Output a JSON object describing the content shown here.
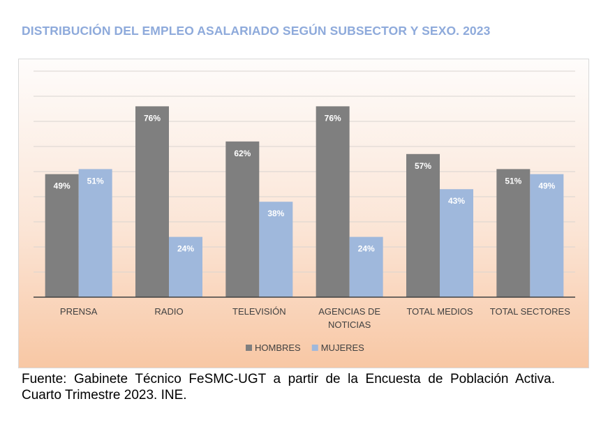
{
  "page": {
    "title": "DISTRIBUCIÓN DEL EMPLEO ASALARIADO SEGÚN SUBSECTOR Y SEXO. 2023",
    "source": "Fuente: Gabinete Técnico FeSMC-UGT a partir de la Encuesta de Población Activa. Cuarto Trimestre 2023. INE."
  },
  "chart_data": {
    "type": "bar",
    "categories": [
      [
        "PRENSA"
      ],
      [
        "RADIO"
      ],
      [
        "TELEVISIÓN"
      ],
      [
        "AGENCIAS DE",
        "NOTICIAS"
      ],
      [
        "TOTAL MEDIOS"
      ],
      [
        "TOTAL SECTORES"
      ]
    ],
    "series": [
      {
        "name": "HOMBRES",
        "values": [
          49,
          76,
          62,
          76,
          57,
          51
        ],
        "labels": [
          "49%",
          "76%",
          "62%",
          "76%",
          "57%",
          "51%"
        ],
        "color": "#7f7f7f"
      },
      {
        "name": "MUJERES",
        "values": [
          51,
          24,
          38,
          24,
          43,
          49
        ],
        "labels": [
          "51%",
          "24%",
          "38%",
          "24%",
          "43%",
          "49%"
        ],
        "color": "#9fb8dc"
      }
    ],
    "ylim": [
      0,
      90
    ],
    "grid": true,
    "legend": "bottom",
    "colors": {
      "label_text": "#ffffff",
      "axis_text": "#404040",
      "grid": "#d9d4d0",
      "axis": "#404040"
    }
  }
}
